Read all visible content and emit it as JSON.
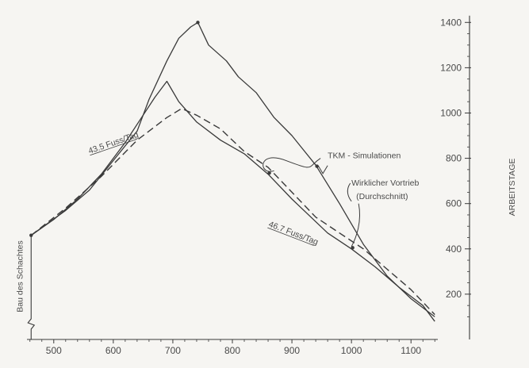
{
  "chart_data": {
    "type": "line",
    "title": "",
    "xlabel": "",
    "ylabel": "ARBEITSTAGE",
    "xlim": [
      455,
      1145
    ],
    "ylim": [
      0,
      1450
    ],
    "x_ticks": [
      500,
      600,
      700,
      800,
      900,
      1000,
      1100
    ],
    "y_ticks": [
      200,
      400,
      600,
      800,
      1000,
      1200,
      1400
    ],
    "y_axis_side": "right",
    "grid": false,
    "series": [
      {
        "name": "",
        "style": "solid",
        "points": [
          [
            462,
            460
          ],
          [
            520,
            570
          ],
          [
            560,
            660
          ],
          [
            600,
            790
          ],
          [
            640,
            920
          ],
          [
            660,
            1060
          ],
          [
            690,
            1230
          ],
          [
            710,
            1330
          ],
          [
            730,
            1380
          ],
          [
            742,
            1400
          ],
          [
            760,
            1300
          ],
          [
            790,
            1230
          ],
          [
            810,
            1160
          ],
          [
            840,
            1090
          ],
          [
            870,
            980
          ],
          [
            900,
            900
          ],
          [
            940,
            770
          ],
          [
            980,
            600
          ],
          [
            1020,
            420
          ],
          [
            1060,
            280
          ],
          [
            1100,
            180
          ],
          [
            1140,
            100
          ]
        ]
      },
      {
        "name": "",
        "style": "solid",
        "points": [
          [
            462,
            460
          ],
          [
            500,
            530
          ],
          [
            540,
            620
          ],
          [
            580,
            730
          ],
          [
            620,
            870
          ],
          [
            650,
            990
          ],
          [
            670,
            1070
          ],
          [
            690,
            1140
          ],
          [
            710,
            1050
          ],
          [
            740,
            960
          ],
          [
            780,
            880
          ],
          [
            820,
            820
          ],
          [
            860,
            730
          ],
          [
            900,
            620
          ],
          [
            960,
            470
          ],
          [
            1000,
            400
          ],
          [
            1040,
            320
          ],
          [
            1080,
            230
          ],
          [
            1120,
            150
          ],
          [
            1140,
            80
          ]
        ]
      },
      {
        "name": "",
        "style": "dashed",
        "points": [
          [
            462,
            460
          ],
          [
            520,
            580
          ],
          [
            580,
            720
          ],
          [
            640,
            880
          ],
          [
            690,
            980
          ],
          [
            715,
            1020
          ],
          [
            740,
            990
          ],
          [
            780,
            930
          ],
          [
            820,
            830
          ],
          [
            860,
            760
          ],
          [
            900,
            650
          ],
          [
            940,
            540
          ],
          [
            980,
            470
          ],
          [
            1020,
            400
          ],
          [
            1060,
            310
          ],
          [
            1100,
            220
          ],
          [
            1140,
            110
          ]
        ]
      }
    ],
    "markers": [
      [
        462,
        460
      ],
      [
        742,
        1400
      ],
      [
        862,
        735
      ],
      [
        942,
        765
      ],
      [
        1002,
        405
      ]
    ],
    "annotations": [
      {
        "text": "43.5  Fuss/Tag",
        "x": 560,
        "y": 820,
        "rotate_deg": -19
      },
      {
        "text": "46.7  Fuss/Tag",
        "x": 860,
        "y": 500,
        "rotate_deg": 21
      },
      {
        "text": "TKM - Simulationen",
        "x": 960,
        "y": 800
      },
      {
        "text": "Wirklicher Vortrieb",
        "x": 1000,
        "y": 680
      },
      {
        "text": "(Durchschnitt)",
        "x": 1008,
        "y": 620
      },
      {
        "text": "Bau des Schachtes",
        "x": 448,
        "y": 120,
        "rotate_deg": -90
      }
    ]
  }
}
